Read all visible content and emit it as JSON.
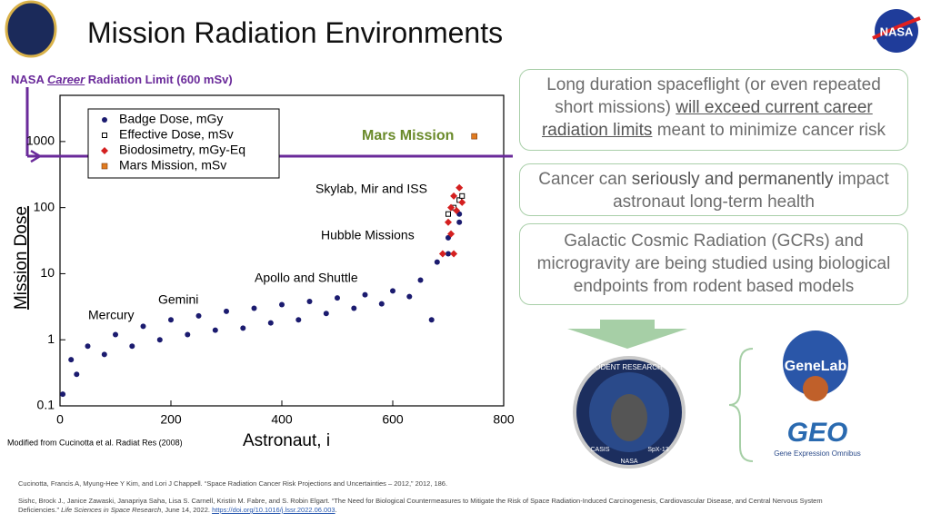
{
  "header": {
    "title": "Mission Radiation Environments"
  },
  "chart_data": {
    "type": "scatter",
    "limit_label": [
      "NASA ",
      "Career",
      " Radiation Limit (600 mSv)"
    ],
    "limit_line": 600,
    "x_label": "Astronaut, i",
    "y_label": "Mission Dose",
    "xlim": [
      0,
      800
    ],
    "xticks": [
      0,
      200,
      400,
      600,
      800
    ],
    "ylim": [
      0.1,
      5000
    ],
    "yticks": [
      0.1,
      1,
      10,
      100,
      1000
    ],
    "log_y": true,
    "legend": "upper left",
    "series": [
      {
        "name": "Badge Dose, mGy",
        "color": "#1b1b6f",
        "marker": "circle",
        "x": [
          5,
          20,
          50,
          100,
          150,
          200,
          250,
          300,
          350,
          400,
          450,
          500,
          550,
          600,
          650,
          680,
          700,
          720,
          30,
          80,
          130,
          180,
          230,
          280,
          330,
          380,
          430,
          480,
          530,
          580,
          630,
          670,
          700,
          720
        ],
        "values": [
          0.15,
          0.5,
          0.8,
          1.2,
          1.6,
          2.0,
          2.3,
          2.7,
          3.0,
          3.4,
          3.8,
          4.3,
          4.8,
          5.5,
          8,
          15,
          35,
          60,
          0.3,
          0.6,
          0.8,
          1.0,
          1.2,
          1.4,
          1.5,
          1.8,
          2.0,
          2.5,
          3,
          3.5,
          4.5,
          2,
          20,
          80
        ]
      },
      {
        "name": "Effective Dose, mSv",
        "color": "#000000",
        "marker": "square-open",
        "x": [
          700,
          710,
          720,
          725
        ],
        "values": [
          80,
          100,
          130,
          150
        ]
      },
      {
        "name": "Biodosimetry, mGy-Eq",
        "color": "#d42020",
        "marker": "diamond",
        "x": [
          690,
          700,
          705,
          705,
          710,
          710,
          715,
          720,
          725
        ],
        "values": [
          20,
          60,
          100,
          40,
          150,
          20,
          90,
          200,
          120
        ]
      },
      {
        "name": "Mars Mission, mSv",
        "color": "#e07b20",
        "marker": "square",
        "x": [
          747
        ],
        "values": [
          1200
        ]
      }
    ],
    "annotations": [
      "Mars Mission",
      "Skylab, Mir and ISS",
      "Hubble Missions",
      "Apollo and Shuttle",
      "Gemini",
      "Mercury"
    ],
    "source": "Modified from Cucinotta et al. Radiat Res (2008)"
  },
  "boxes": [
    [
      "Long duration spaceflight (or even repeated short missions) ",
      "will exceed current career radiation limits",
      " meant to minimize cancer risk"
    ],
    [
      "Cancer can ",
      "seriously and permanently",
      " impact astronaut long-term health"
    ],
    [
      "Galactic Cosmic Radiation (GCRs) and microgravity are being studied using biological endpoints from rodent based models"
    ]
  ],
  "logos": {
    "patch": [
      "RODENT RESEARCH 6",
      "CASIS",
      "NASA",
      "SpX-13"
    ],
    "genelab": "GeneLab",
    "geo": "GEO",
    "geo_sub": "Gene Expression Omnibus",
    "nasa": "NASA"
  },
  "references": [
    [
      "Cucinotta, Francis A, Myung-Hee Y Kim, and Lori J Chappell. “Space Radiation Cancer Risk Projections and Uncertainties – 2012,” 2012, 186."
    ],
    [
      "Sishc, Brock J., Janice Zawaski, Janapriya Saha, Lisa S. Carnell, Kristin M. Fabre, and S. Robin Elgart. “The Need for Biological Countermeasures to Mitigate the Risk of Space Radiation-Induced Carcinogenesis, Cardiovascular Disease, and Central Nervous System Deficiencies.” ",
      "Life Sciences in Space Research",
      ", June 14, 2022. ",
      "https://doi.org/10.1016/j.lssr.2022.06.003",
      "."
    ]
  ]
}
